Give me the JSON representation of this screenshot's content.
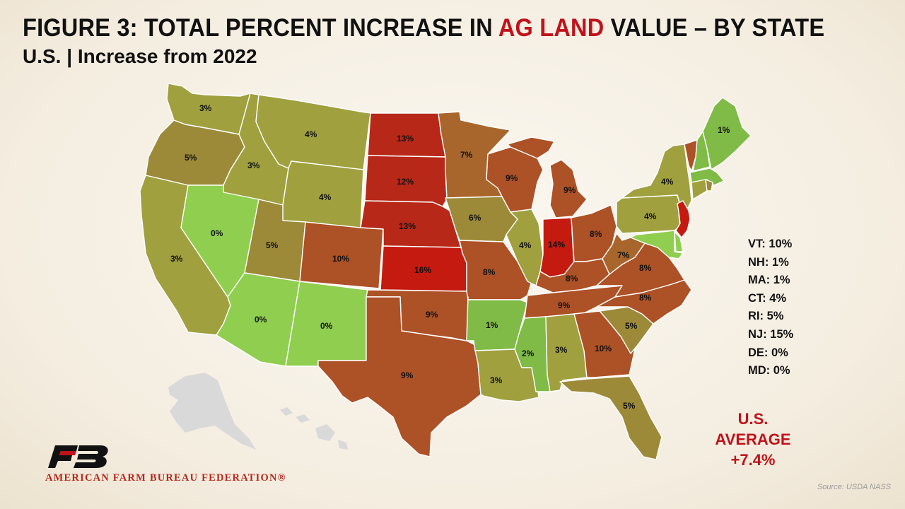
{
  "title": {
    "prefix": "FIGURE 3: TOTAL PERCENT INCREASE IN ",
    "highlight": "AG LAND",
    "suffix": " VALUE – BY STATE"
  },
  "subtitle": "U.S. | Increase from 2022",
  "colors": {
    "scale_0": "#8fce4f",
    "scale_1": "#7fbb46",
    "scale_3": "#a0a03f",
    "scale_5": "#9c8a38",
    "scale_7": "#a8662c",
    "scale_9": "#ad5126",
    "scale_12": "#b72818",
    "scale_14": "#c41a10",
    "inset_gray": "#d9d9d9",
    "accent_red": "#c0121a"
  },
  "states": [
    {
      "id": "WA",
      "value": 3,
      "label": "3%"
    },
    {
      "id": "OR",
      "value": 5,
      "label": "5%"
    },
    {
      "id": "CA",
      "value": 3,
      "label": "3%"
    },
    {
      "id": "ID",
      "value": 3,
      "label": "3%"
    },
    {
      "id": "NV",
      "value": 0,
      "label": "0%"
    },
    {
      "id": "MT",
      "value": 4,
      "label": "4%"
    },
    {
      "id": "WY",
      "value": 4,
      "label": "4%"
    },
    {
      "id": "UT",
      "value": 5,
      "label": "5%"
    },
    {
      "id": "AZ",
      "value": 0,
      "label": "0%"
    },
    {
      "id": "CO",
      "value": 10,
      "label": "10%"
    },
    {
      "id": "NM",
      "value": 0,
      "label": "0%"
    },
    {
      "id": "ND",
      "value": 13,
      "label": "13%"
    },
    {
      "id": "SD",
      "value": 12,
      "label": "12%"
    },
    {
      "id": "NE",
      "value": 13,
      "label": "13%"
    },
    {
      "id": "KS",
      "value": 16,
      "label": "16%"
    },
    {
      "id": "OK",
      "value": 9,
      "label": "9%"
    },
    {
      "id": "TX",
      "value": 9,
      "label": "9%"
    },
    {
      "id": "MN",
      "value": 7,
      "label": "7%"
    },
    {
      "id": "IA",
      "value": 6,
      "label": "6%"
    },
    {
      "id": "MO",
      "value": 8,
      "label": "8%"
    },
    {
      "id": "AR",
      "value": 1,
      "label": "1%"
    },
    {
      "id": "LA",
      "value": 3,
      "label": "3%"
    },
    {
      "id": "WI",
      "value": 9,
      "label": "9%"
    },
    {
      "id": "IL",
      "value": 4,
      "label": "4%"
    },
    {
      "id": "MI",
      "value": 9,
      "label": "9%"
    },
    {
      "id": "IN",
      "value": 14,
      "label": "14%"
    },
    {
      "id": "OH",
      "value": 8,
      "label": "8%"
    },
    {
      "id": "KY",
      "value": 8,
      "label": "8%"
    },
    {
      "id": "TN",
      "value": 9,
      "label": "9%"
    },
    {
      "id": "MS",
      "value": 2,
      "label": "2%"
    },
    {
      "id": "AL",
      "value": 3,
      "label": "3%"
    },
    {
      "id": "GA",
      "value": 10,
      "label": "10%"
    },
    {
      "id": "FL",
      "value": 5,
      "label": "5%"
    },
    {
      "id": "SC",
      "value": 5,
      "label": "5%"
    },
    {
      "id": "NC",
      "value": 8,
      "label": "8%"
    },
    {
      "id": "VA",
      "value": 8,
      "label": "8%"
    },
    {
      "id": "WV",
      "value": 7,
      "label": "7%"
    },
    {
      "id": "PA",
      "value": 4,
      "label": "4%"
    },
    {
      "id": "NY",
      "value": 4,
      "label": "4%"
    },
    {
      "id": "ME",
      "value": 1,
      "label": "1%"
    },
    {
      "id": "VT",
      "value": 10
    },
    {
      "id": "NH",
      "value": 1
    },
    {
      "id": "MA",
      "value": 1
    },
    {
      "id": "CT",
      "value": 4
    },
    {
      "id": "RI",
      "value": 5
    },
    {
      "id": "NJ",
      "value": 15
    },
    {
      "id": "DE",
      "value": 0
    },
    {
      "id": "MD",
      "value": 0
    }
  ],
  "small_states": [
    {
      "id": "VT",
      "label": "VT: 10%"
    },
    {
      "id": "NH",
      "label": "NH: 1%"
    },
    {
      "id": "MA",
      "label": "MA: 1%"
    },
    {
      "id": "CT",
      "label": "CT: 4%"
    },
    {
      "id": "RI",
      "label": "RI: 5%"
    },
    {
      "id": "NJ",
      "label": "NJ: 15%"
    },
    {
      "id": "DE",
      "label": "DE: 0%"
    },
    {
      "id": "MD",
      "label": "MD: 0%"
    }
  ],
  "average": {
    "line1": "U.S.",
    "line2": "AVERAGE",
    "line3": "+7.4%"
  },
  "logo": {
    "text": "AMERICAN FARM BUREAU FEDERATION®"
  },
  "source": "Source: USDA NASS"
}
